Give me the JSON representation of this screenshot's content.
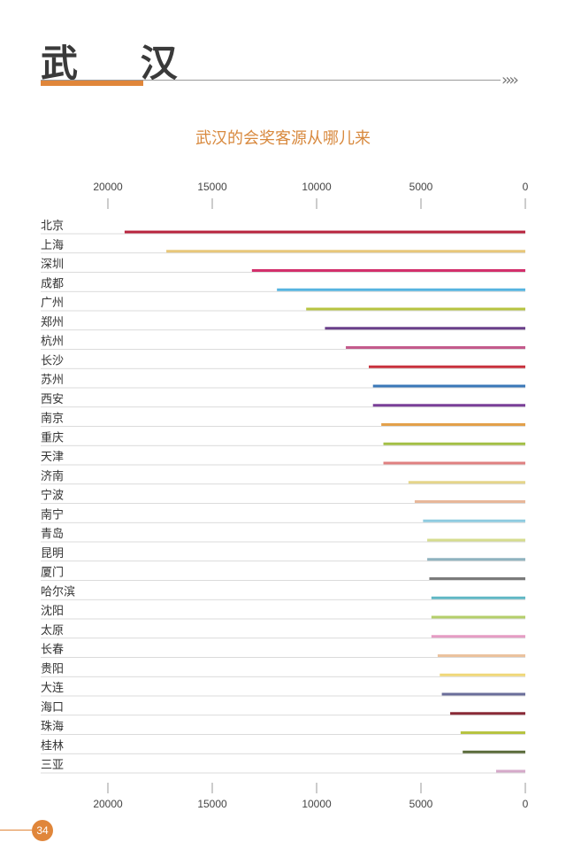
{
  "header": {
    "title": "武 汉",
    "accent_color": "#e0863a",
    "arrows": "››››"
  },
  "page_number": "34",
  "chart_data": {
    "type": "bar",
    "orientation": "horizontal",
    "x_direction": "reversed",
    "title": "武汉的会奖客源从哪儿来",
    "xlabel": "",
    "ylabel": "",
    "xlim": [
      0,
      20000
    ],
    "x_ticks": [
      20000,
      15000,
      10000,
      5000,
      0
    ],
    "x_tick_labels": [
      "20000",
      "15000",
      "10000",
      "5000",
      "0"
    ],
    "grid": false,
    "categories": [
      "北京",
      "上海",
      "深圳",
      "成都",
      "广州",
      "郑州",
      "杭州",
      "长沙",
      "苏州",
      "西安",
      "南京",
      "重庆",
      "天津",
      "济南",
      "宁波",
      "南宁",
      "青岛",
      "昆明",
      "厦门",
      "哈尔滨",
      "沈阳",
      "太原",
      "长春",
      "贵阳",
      "大连",
      "海口",
      "珠海",
      "桂林",
      "三亚"
    ],
    "values": [
      19200,
      17200,
      13100,
      11900,
      10500,
      9600,
      8600,
      7500,
      7300,
      7300,
      6900,
      6800,
      6800,
      5600,
      5300,
      4900,
      4700,
      4700,
      4600,
      4500,
      4500,
      4500,
      4200,
      4100,
      4000,
      3600,
      3100,
      3000,
      1400
    ],
    "colors": [
      "#b8243e",
      "#e8c77a",
      "#d3306c",
      "#56b4e0",
      "#b7c441",
      "#6a3f8a",
      "#c45a8c",
      "#c8313c",
      "#3a78b8",
      "#7a3f98",
      "#e3a04a",
      "#a2bf45",
      "#e08080",
      "#e5d58a",
      "#e8b79a",
      "#8ecbe0",
      "#d6dd8e",
      "#8fb3bf",
      "#7b7b7b",
      "#5fb7c4",
      "#b4cf6a",
      "#e59cc4",
      "#ebc29e",
      "#f0d878",
      "#6a6d9a",
      "#8a2a36",
      "#b7c441",
      "#5a6b3a",
      "#d5a9c9"
    ]
  }
}
